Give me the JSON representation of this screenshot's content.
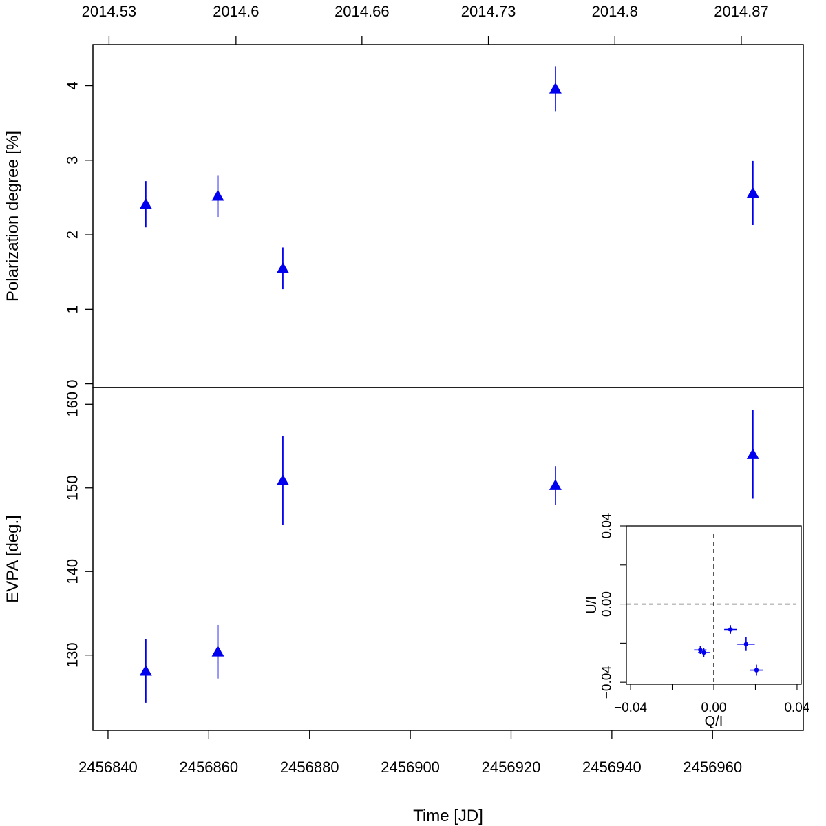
{
  "colors": {
    "points": "#0000ee",
    "axis": "#000000"
  },
  "chart_data": [
    {
      "name": "polarization-degree-panel",
      "type": "scatter",
      "marker": "triangle",
      "ylabel": "Polarization degree [%]",
      "xlim": [
        2456837,
        2456978
      ],
      "ylim": [
        -0.05,
        4.55
      ],
      "y_ticks": [
        0,
        1,
        2,
        3,
        4
      ],
      "y_tick_labels": [
        "0",
        "1",
        "2",
        "3",
        "4"
      ],
      "top_axis_ticks_jd": [
        2456840.2,
        2456865.4,
        2456890.4,
        2456915.5,
        2456940.6,
        2456965.7
      ],
      "top_axis_labels": [
        "2014.53",
        "2014.6",
        "2014.66",
        "2014.73",
        "2014.8",
        "2014.87"
      ],
      "points": [
        {
          "x": 2456847.5,
          "y": 2.41,
          "err": 0.31
        },
        {
          "x": 2456861.8,
          "y": 2.52,
          "err": 0.28
        },
        {
          "x": 2456874.7,
          "y": 1.55,
          "err": 0.28
        },
        {
          "x": 2456928.8,
          "y": 3.96,
          "err": 0.3
        },
        {
          "x": 2456968.0,
          "y": 2.56,
          "err": 0.43
        }
      ]
    },
    {
      "name": "evpa-panel",
      "type": "scatter",
      "marker": "triangle",
      "xlabel": "Time [JD]",
      "ylabel": "EVPA [deg.]",
      "xlim": [
        2456837,
        2456978
      ],
      "ylim": [
        121,
        162
      ],
      "x_ticks": [
        2456840,
        2456860,
        2456880,
        2456900,
        2456920,
        2456940,
        2456960
      ],
      "x_tick_labels": [
        "2456840",
        "2456860",
        "2456880",
        "2456900",
        "2456920",
        "2456940",
        "2456960"
      ],
      "y_ticks": [
        130,
        140,
        150,
        160
      ],
      "y_tick_labels": [
        "130",
        "140",
        "150",
        "160"
      ],
      "points": [
        {
          "x": 2456847.5,
          "y": 128.1,
          "err": 3.8
        },
        {
          "x": 2456861.8,
          "y": 130.4,
          "err": 3.2
        },
        {
          "x": 2456874.7,
          "y": 150.9,
          "err": 5.3
        },
        {
          "x": 2456928.8,
          "y": 150.3,
          "err": 2.3
        },
        {
          "x": 2456968.0,
          "y": 154.0,
          "err": 5.3
        }
      ]
    },
    {
      "name": "qu-inset",
      "type": "scatter",
      "marker": "dot",
      "xlabel": "Q/I",
      "ylabel": "U/I",
      "xlim": [
        -0.042,
        0.042
      ],
      "ylim": [
        -0.041,
        0.04
      ],
      "x_ticks": [
        -0.04,
        -0.02,
        0.0,
        0.02,
        0.04
      ],
      "x_tick_labels": [
        "−0.04",
        "",
        "0.00",
        "",
        "0.04"
      ],
      "y_ticks": [
        -0.04,
        -0.02,
        0.0,
        0.02,
        0.04
      ],
      "y_tick_labels": [
        "−0.04",
        "",
        "0.00",
        "",
        "0.04"
      ],
      "reference_lines": {
        "x": 0.0,
        "y": 0.0
      },
      "points": [
        {
          "x": -0.0065,
          "y": -0.0235,
          "ex": 0.003,
          "ey": 0.002
        },
        {
          "x": -0.0048,
          "y": -0.0248,
          "ex": 0.0028,
          "ey": 0.0022
        },
        {
          "x": 0.008,
          "y": -0.013,
          "ex": 0.003,
          "ey": 0.0022
        },
        {
          "x": 0.0155,
          "y": -0.0205,
          "ex": 0.0042,
          "ey": 0.0035
        },
        {
          "x": 0.0205,
          "y": -0.0338,
          "ex": 0.003,
          "ey": 0.0028
        }
      ]
    }
  ]
}
